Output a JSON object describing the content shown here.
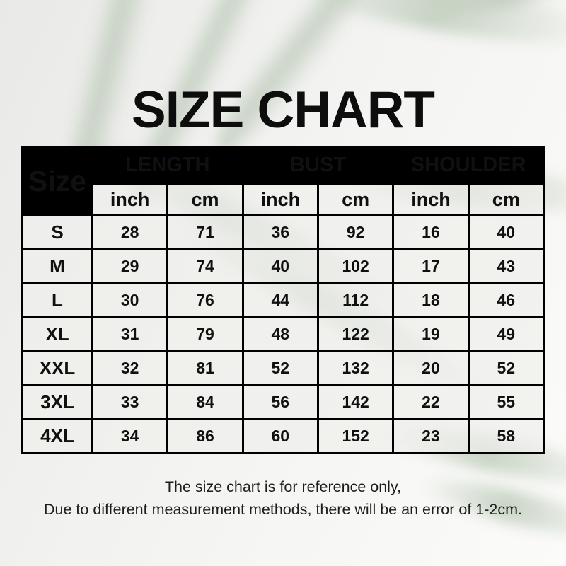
{
  "page": {
    "title": "SIZE CHART"
  },
  "table": {
    "corner_label": "Size",
    "groups": [
      {
        "label": "LENGTH"
      },
      {
        "label": "BUST"
      },
      {
        "label": "SHOULDER"
      }
    ],
    "unit_headers": [
      "inch",
      "cm",
      "inch",
      "cm",
      "inch",
      "cm"
    ],
    "rows": [
      {
        "size": "S",
        "values": [
          "28",
          "71",
          "36",
          "92",
          "16",
          "40"
        ]
      },
      {
        "size": "M",
        "values": [
          "29",
          "74",
          "40",
          "102",
          "17",
          "43"
        ]
      },
      {
        "size": "L",
        "values": [
          "30",
          "76",
          "44",
          "112",
          "18",
          "46"
        ]
      },
      {
        "size": "XL",
        "values": [
          "31",
          "79",
          "48",
          "122",
          "19",
          "49"
        ]
      },
      {
        "size": "XXL",
        "values": [
          "32",
          "81",
          "52",
          "132",
          "20",
          "52"
        ]
      },
      {
        "size": "3XL",
        "values": [
          "33",
          "84",
          "56",
          "142",
          "22",
          "55"
        ]
      },
      {
        "size": "4XL",
        "values": [
          "34",
          "86",
          "60",
          "152",
          "23",
          "58"
        ]
      }
    ]
  },
  "footer": {
    "line1": "The size chart is for reference only,",
    "line2": "Due to different measurement methods, there will be an error of 1-2cm."
  },
  "colors": {
    "header_bg": "#000000",
    "header_text": "#ffffff",
    "body_text": "#101010",
    "table_border": "#000000",
    "leaf_green": "#b7c6b3",
    "background": "#f1f1ef"
  }
}
